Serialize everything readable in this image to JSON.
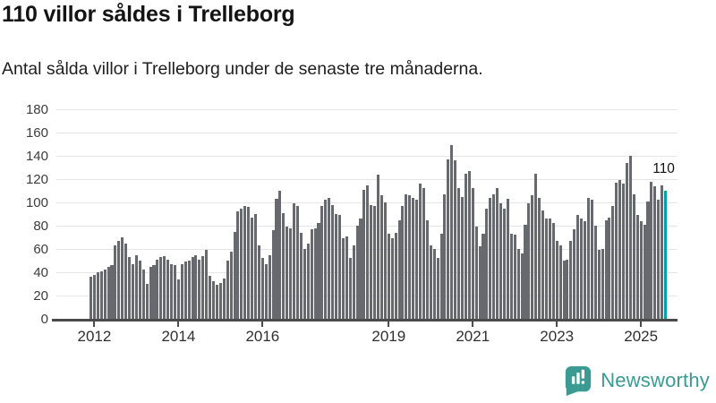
{
  "title": "110 villor såldes i Trelleborg",
  "subtitle": "Antal sålda villor i Trelleborg under de senaste tre månaderna.",
  "annotation": {
    "label": "110"
  },
  "branding": {
    "name": "Newsworthy",
    "icon": "bar-chart-speech-bubble-icon",
    "color": "#3b9a92"
  },
  "colors": {
    "bar": "#68686f",
    "highlight": "#00a0a5",
    "grid": "#e4e4e4",
    "axis": "#4b4b4b",
    "text": "#141414"
  },
  "chart_data": {
    "type": "bar",
    "title": "110 villor såldes i Trelleborg",
    "subtitle": "Antal sålda villor i Trelleborg under de senaste tre månaderna.",
    "unit": "sålda villor (rullande 3 månader)",
    "frequency": "monthly",
    "x_start": "2011-12",
    "x_end": "2025-08",
    "ylim": [
      0,
      180
    ],
    "yticks": [
      0,
      20,
      40,
      60,
      80,
      100,
      120,
      140,
      160,
      180
    ],
    "grid": true,
    "legend": false,
    "x_ticks": [
      {
        "label": "2012",
        "index": 1
      },
      {
        "label": "2014",
        "index": 25
      },
      {
        "label": "2016",
        "index": 49
      },
      {
        "label": "2019",
        "index": 85
      },
      {
        "label": "2021",
        "index": 109
      },
      {
        "label": "2023",
        "index": 133
      },
      {
        "label": "2025",
        "index": 157
      }
    ],
    "values": [
      36,
      38,
      40,
      41,
      42,
      45,
      46,
      63,
      67,
      70,
      65,
      53,
      47,
      55,
      50,
      42,
      30,
      45,
      46,
      51,
      53,
      54,
      51,
      47,
      46,
      34,
      47,
      49,
      50,
      53,
      55,
      51,
      54,
      59,
      37,
      32,
      29,
      31,
      35,
      50,
      58,
      75,
      92,
      95,
      97,
      96,
      87,
      90,
      63,
      52,
      47,
      55,
      76,
      103,
      110,
      91,
      79,
      78,
      99,
      97,
      74,
      60,
      65,
      77,
      78,
      82,
      97,
      102,
      104,
      98,
      90,
      89,
      69,
      71,
      52,
      63,
      80,
      86,
      111,
      115,
      98,
      97,
      124,
      106,
      100,
      73,
      69,
      74,
      85,
      97,
      107,
      106,
      104,
      102,
      116,
      112,
      85,
      63,
      60,
      52,
      73,
      107,
      137,
      149,
      136,
      112,
      105,
      125,
      127,
      112,
      79,
      62,
      73,
      95,
      104,
      107,
      112,
      99,
      95,
      103,
      73,
      72,
      60,
      56,
      81,
      99,
      106,
      125,
      104,
      93,
      86,
      86,
      82,
      67,
      63,
      50,
      51,
      67,
      77,
      89,
      86,
      84,
      104,
      102,
      80,
      59,
      60,
      85,
      87,
      97,
      117,
      119,
      116,
      134,
      140,
      107,
      89,
      84,
      81,
      101,
      118,
      114,
      102,
      115,
      110
    ],
    "highlight_index": 164,
    "highlight_value": 110
  }
}
